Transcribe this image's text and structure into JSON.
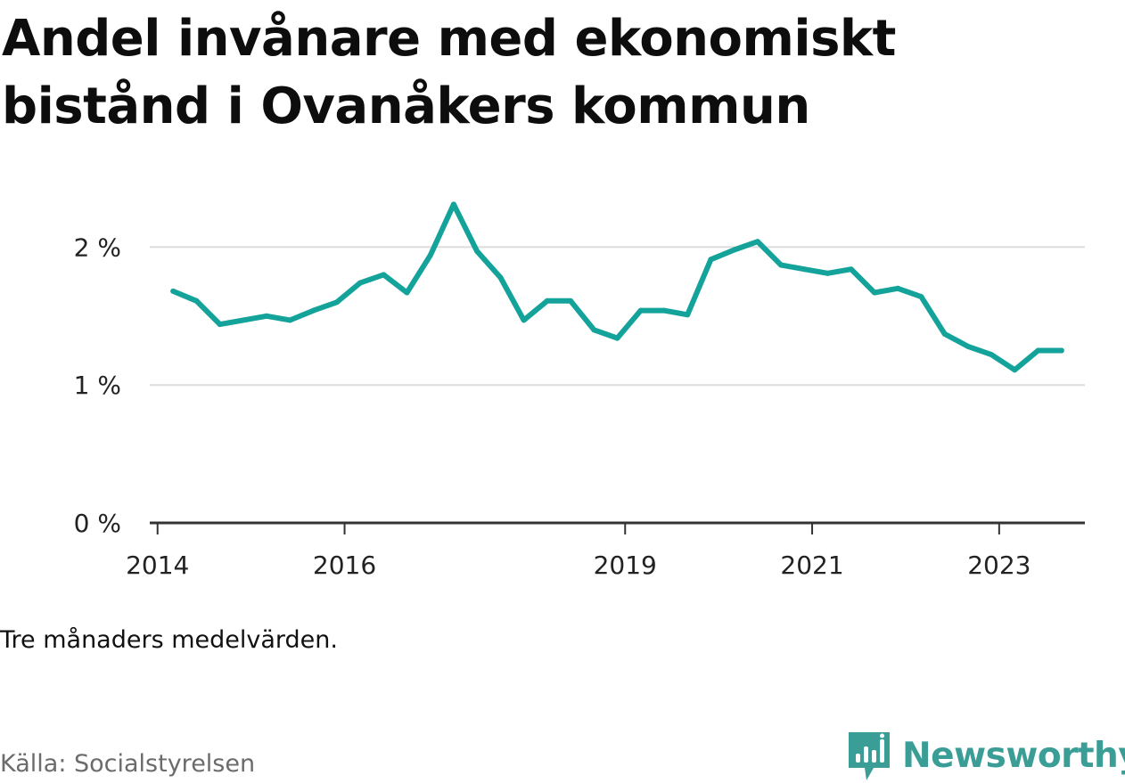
{
  "title": "Andel invånare med ekonomiskt bistånd i Ovanåkers kommun",
  "note": "Tre månaders medelvärden.",
  "source": "Källa: Socialstyrelsen",
  "brand": {
    "name": "Newsworthy",
    "icon": "newsworthy-logo-icon",
    "color": "#3a9e97"
  },
  "chart_data": {
    "type": "line",
    "title": "Andel invånare med ekonomiskt bistånd i Ovanåkers kommun",
    "xlabel": "",
    "ylabel": "",
    "xlim": [
      "2013-12",
      "2023-12"
    ],
    "ylim": [
      0,
      2.5
    ],
    "grid": true,
    "y_ticks": [
      0,
      1,
      2
    ],
    "y_tick_labels": [
      "0 %",
      "1 %",
      "2 %"
    ],
    "x_ticks": [
      "2014-01",
      "2016-01",
      "2019-01",
      "2021-01",
      "2023-01"
    ],
    "x_tick_labels": [
      "2014",
      "2016",
      "2019",
      "2021",
      "2023"
    ],
    "line_color": "#14a39a",
    "series": [
      {
        "name": "",
        "x": [
          "2014-03",
          "2014-06",
          "2014-09",
          "2014-12",
          "2015-03",
          "2015-06",
          "2015-09",
          "2015-12",
          "2016-03",
          "2016-06",
          "2016-09",
          "2016-12",
          "2017-03",
          "2017-06",
          "2017-09",
          "2017-12",
          "2018-03",
          "2018-06",
          "2018-09",
          "2018-12",
          "2019-03",
          "2019-06",
          "2019-09",
          "2019-12",
          "2020-03",
          "2020-06",
          "2020-09",
          "2020-12",
          "2021-03",
          "2021-06",
          "2021-09",
          "2021-12",
          "2022-03",
          "2022-06",
          "2022-09",
          "2022-12",
          "2023-03",
          "2023-06",
          "2023-09"
        ],
        "values": [
          1.68,
          1.61,
          1.44,
          1.47,
          1.5,
          1.47,
          1.54,
          1.6,
          1.74,
          1.8,
          1.67,
          1.94,
          2.31,
          1.97,
          1.78,
          1.47,
          1.61,
          1.61,
          1.4,
          1.34,
          1.54,
          1.54,
          1.51,
          1.91,
          1.98,
          2.04,
          1.87,
          1.84,
          1.81,
          1.84,
          1.67,
          1.7,
          1.64,
          1.37,
          1.28,
          1.22,
          1.11,
          1.25,
          1.25
        ]
      }
    ]
  }
}
